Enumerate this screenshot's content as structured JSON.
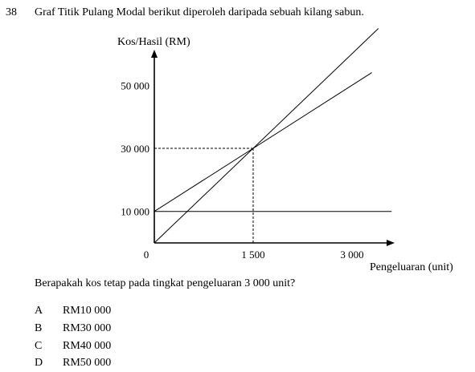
{
  "question_number": "38",
  "intro": "Graf Titik Pulang Modal berikut diperoleh daripada sebuah kilang sabun.",
  "question": "Berapakah kos tetap pada tingkat pengeluaran 3 000 unit?",
  "options": [
    {
      "letter": "A",
      "text": "RM10 000"
    },
    {
      "letter": "B",
      "text": "RM30 000"
    },
    {
      "letter": "C",
      "text": "RM40 000"
    },
    {
      "letter": "D",
      "text": "RM50 000"
    }
  ],
  "chart_data": {
    "type": "line",
    "ylabel": "Kos/Hasil (RM)",
    "xlabel": "Pengeluaran (unit)",
    "origin_label": "0",
    "x_ticks": [
      {
        "value": 1500,
        "label": "1 500"
      },
      {
        "value": 3000,
        "label": "3 000"
      }
    ],
    "y_ticks": [
      {
        "value": 10000,
        "label": "10 000"
      },
      {
        "value": 30000,
        "label": "30 000"
      },
      {
        "value": 50000,
        "label": "50 000"
      }
    ],
    "xlim": [
      0,
      3850
    ],
    "ylim": [
      0,
      62000
    ],
    "series": [
      {
        "x": [
          0,
          3400
        ],
        "y": [
          0,
          68000
        ]
      },
      {
        "x": [
          0,
          3300
        ],
        "y": [
          10000,
          54000
        ]
      },
      {
        "x": [
          0,
          3600
        ],
        "y": [
          10000,
          10000
        ]
      }
    ],
    "reference_point": {
      "x": 1500,
      "y": 30000
    },
    "grid": false
  }
}
